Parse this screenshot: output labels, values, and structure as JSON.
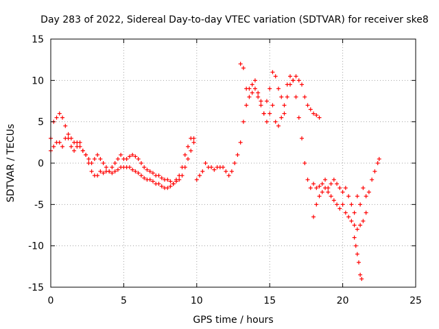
{
  "chart_data": {
    "type": "scatter",
    "title": "Day 283 of 2022, Sidereal Day-to-day VTEC variation (SDTVAR) for receiver ske8",
    "xlabel": "GPS time / hours",
    "ylabel": "SDTVAR / TECUs",
    "xlim": [
      0,
      25
    ],
    "ylim": [
      -15,
      15
    ],
    "x_ticks": [
      0,
      5,
      10,
      15,
      20,
      25
    ],
    "x_tick_labels": [
      "0",
      "5",
      "10",
      "15",
      "20",
      "25"
    ],
    "y_ticks": [
      -15,
      -10,
      -5,
      0,
      5,
      10,
      15
    ],
    "y_tick_labels": [
      "-15",
      "-10",
      "-5",
      "0",
      "5",
      "10",
      "15"
    ],
    "grid": true,
    "marker": "+",
    "color": "#ff0000",
    "series": [
      {
        "name": "SDTVAR",
        "x": [
          0.0,
          0.2,
          0.4,
          0.6,
          0.8,
          1.0,
          1.2,
          1.4,
          1.6,
          1.8,
          2.0,
          2.2,
          2.4,
          2.6,
          2.8,
          3.0,
          3.2,
          3.4,
          3.6,
          3.8,
          4.0,
          4.2,
          4.4,
          4.6,
          4.8,
          5.0,
          5.2,
          5.4,
          5.6,
          5.8,
          6.0,
          6.2,
          6.4,
          6.6,
          6.8,
          7.0,
          7.2,
          7.4,
          7.6,
          7.8,
          8.0,
          8.2,
          8.4,
          8.6,
          8.8,
          9.0,
          9.2,
          9.4,
          9.6,
          9.8,
          10.0,
          10.2,
          10.4,
          10.6,
          10.8,
          11.0,
          11.2,
          11.4,
          11.6,
          11.8,
          12.0,
          12.2,
          12.4,
          12.6,
          12.8,
          13.0,
          13.2,
          13.4,
          13.6,
          13.8,
          14.0,
          14.2,
          14.4,
          14.6,
          14.8,
          15.0,
          15.2,
          15.4,
          15.6,
          15.8,
          16.0,
          16.2,
          16.4,
          16.6,
          16.8,
          17.0,
          17.2,
          17.4,
          17.6,
          17.8,
          18.0,
          18.2,
          18.4,
          18.6,
          18.8,
          19.0,
          19.2,
          19.4,
          19.6,
          19.8,
          20.0,
          20.2,
          20.4,
          20.6,
          20.8,
          21.0,
          21.2,
          21.4,
          21.6,
          21.8,
          22.0,
          22.2,
          22.4,
          22.5,
          0.0,
          0.2,
          0.4,
          0.6,
          0.8,
          1.0,
          1.2,
          1.4,
          1.6,
          1.8,
          2.0,
          2.2,
          2.4,
          2.6,
          2.8,
          3.0,
          3.2,
          3.4,
          3.6,
          3.8,
          4.0,
          4.2,
          4.4,
          4.6,
          4.8,
          5.0,
          5.2,
          5.4,
          5.6,
          5.8,
          6.0,
          6.2,
          6.4,
          6.6,
          6.8,
          7.0,
          7.2,
          7.4,
          7.6,
          7.8,
          8.0,
          8.2,
          8.4,
          8.6,
          8.8,
          9.0,
          9.2,
          9.4,
          9.6,
          9.8,
          13.0,
          13.2,
          13.4,
          13.6,
          13.8,
          14.0,
          14.2,
          14.4,
          14.6,
          14.8,
          15.0,
          15.2,
          15.4,
          15.6,
          15.8,
          16.0,
          16.2,
          16.4,
          16.6,
          16.8,
          17.0,
          17.2,
          17.4,
          17.6,
          17.8,
          18.0,
          18.2,
          18.4,
          18.0,
          18.2,
          18.4,
          18.6,
          18.8,
          19.0,
          19.2,
          19.4,
          19.6,
          19.8,
          20.0,
          20.2,
          20.4,
          20.6,
          20.8,
          21.0,
          21.2,
          21.4,
          21.6,
          20.8,
          20.9,
          21.0,
          21.1,
          21.2,
          21.3
        ],
        "y": [
          3.0,
          5.0,
          5.5,
          6.0,
          5.5,
          4.5,
          3.0,
          2.0,
          1.5,
          2.5,
          2.0,
          1.5,
          1.0,
          0.5,
          0.0,
          0.5,
          1.0,
          0.5,
          0.0,
          -0.5,
          -1.0,
          -0.5,
          0.0,
          0.5,
          1.0,
          0.5,
          0.5,
          0.8,
          1.0,
          0.8,
          0.5,
          0.0,
          -0.5,
          -0.8,
          -1.0,
          -1.2,
          -1.5,
          -1.5,
          -1.8,
          -2.0,
          -2.0,
          -2.2,
          -2.5,
          -2.0,
          -1.5,
          -0.5,
          1.0,
          2.0,
          3.0,
          3.0,
          -2.0,
          -1.5,
          -1.0,
          0.0,
          -0.5,
          -0.5,
          -0.8,
          -0.5,
          -0.5,
          -0.5,
          -1.0,
          -1.5,
          -1.0,
          0.0,
          1.0,
          2.5,
          5.0,
          7.0,
          9.0,
          9.5,
          10.0,
          8.5,
          7.0,
          6.0,
          7.5,
          9.0,
          11.0,
          10.5,
          9.0,
          8.0,
          7.0,
          9.5,
          10.5,
          10.0,
          8.0,
          5.5,
          3.0,
          0.0,
          -2.0,
          -3.0,
          -2.5,
          -3.0,
          -2.8,
          -2.5,
          -2.0,
          -3.0,
          -2.5,
          -2.0,
          -2.5,
          -3.0,
          -3.5,
          -3.0,
          -4.0,
          -5.0,
          -6.0,
          -4.0,
          -5.0,
          -3.0,
          -4.0,
          -3.5,
          -2.0,
          -1.0,
          0.0,
          0.5,
          1.5,
          2.0,
          2.5,
          2.5,
          2.0,
          3.0,
          3.5,
          3.0,
          2.5,
          2.0,
          2.5,
          1.5,
          1.0,
          0.0,
          -1.0,
          -1.5,
          -1.5,
          -1.0,
          -1.2,
          -1.0,
          -1.0,
          -1.2,
          -1.0,
          -0.8,
          -0.5,
          -0.5,
          -0.5,
          -0.5,
          -0.8,
          -1.0,
          -1.2,
          -1.5,
          -1.8,
          -2.0,
          -2.0,
          -2.2,
          -2.5,
          -2.5,
          -2.8,
          -3.0,
          -3.0,
          -2.8,
          -2.5,
          -2.2,
          -2.0,
          -1.5,
          -0.5,
          0.5,
          1.5,
          2.5,
          12.0,
          11.5,
          9.0,
          8.0,
          8.5,
          9.0,
          8.0,
          7.5,
          6.0,
          5.0,
          6.0,
          7.0,
          5.0,
          4.5,
          5.5,
          6.0,
          8.0,
          9.5,
          10.0,
          10.5,
          10.0,
          9.5,
          8.0,
          7.0,
          6.5,
          6.0,
          5.8,
          5.5,
          -6.5,
          -5.0,
          -4.0,
          -3.5,
          -3.0,
          -3.5,
          -4.0,
          -4.5,
          -5.0,
          -5.5,
          -5.0,
          -6.0,
          -6.5,
          -7.0,
          -7.5,
          -8.0,
          -7.5,
          -7.0,
          -6.0,
          -9.0,
          -10.0,
          -11.0,
          -12.0,
          -13.5,
          -14.0
        ]
      }
    ]
  }
}
